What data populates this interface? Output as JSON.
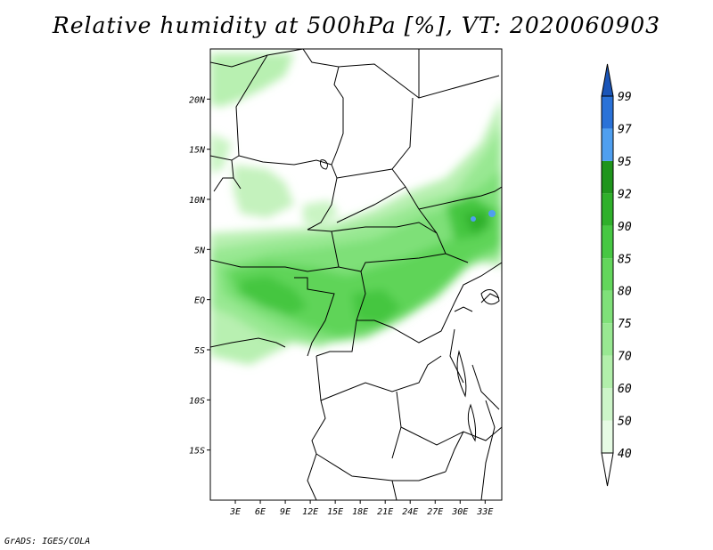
{
  "title": "Relative humidity at 500hPa [%], VT: 2020060903",
  "credit": "GrADS: IGES/COLA",
  "map": {
    "lon_range": [
      0,
      35
    ],
    "lat_range": [
      -20,
      25
    ],
    "lon_ticks": [
      "3E",
      "6E",
      "9E",
      "12E",
      "15E",
      "18E",
      "21E",
      "24E",
      "27E",
      "30E",
      "33E"
    ],
    "lat_ticks": [
      "20N",
      "15N",
      "10N",
      "5N",
      "EQ",
      "5S",
      "10S",
      "15S"
    ]
  },
  "colorbar": {
    "levels": [
      "40",
      "50",
      "60",
      "70",
      "75",
      "80",
      "85",
      "90",
      "92",
      "95",
      "97",
      "99"
    ],
    "colors": [
      "#ffffff",
      "#e6fbe4",
      "#cdf5c9",
      "#b2efab",
      "#98e892",
      "#7fe079",
      "#63d65c",
      "#47c843",
      "#2fb02b",
      "#1f951c",
      "#4f9ff0",
      "#2a72d8",
      "#1a55b8"
    ]
  }
}
